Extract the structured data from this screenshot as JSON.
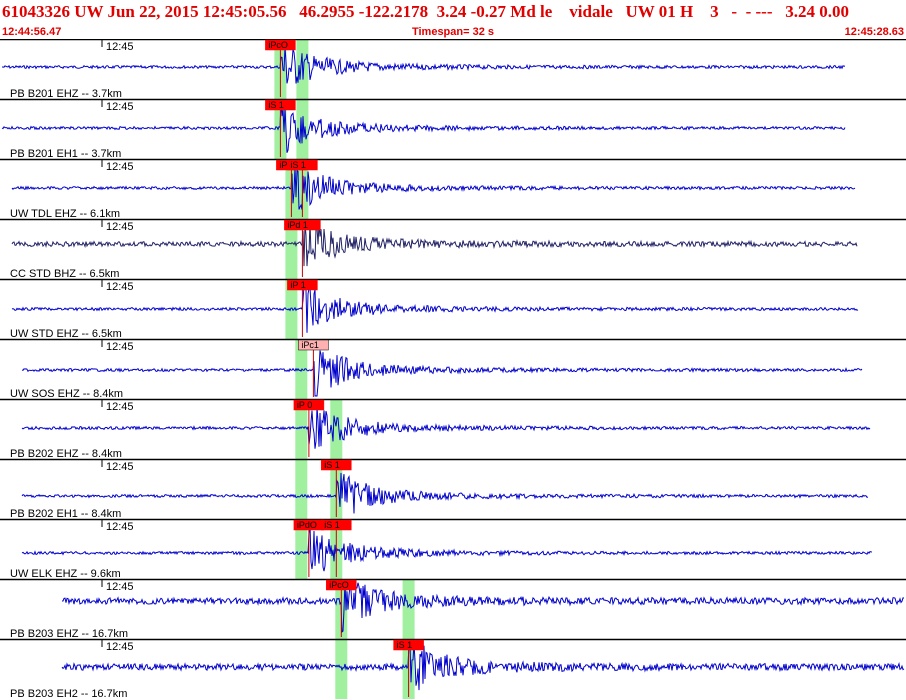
{
  "header": {
    "title": "61043326 UW Jun 22, 2015 12:45:05.56   46.2955 -122.2178  3.24 -0.27 Md le    vidale   UW 01 H    3   -  - ---   3.24 0.00",
    "start_time": "12:44:56.47",
    "timespan": "Timespan=  32 s",
    "end_time": "12:45:28.63"
  },
  "colors": {
    "header_text": "#e00000",
    "trace": "#0000cc",
    "trace_alt": "#222266",
    "pick_box": "#ff0000",
    "pick_box_alt": "#ffb0b0",
    "shade": "#a0f0a0",
    "pick_line": "#cc0000"
  },
  "panels": [
    {
      "time_label": "12:45",
      "station_label": "PB B201 EHZ -- 3.7km",
      "picks": [
        {
          "label": "iPcO",
          "frac": 0.3095
        }
      ],
      "shades": [
        0.3095,
        0.3338
      ]
    },
    {
      "time_label": "12:45",
      "station_label": "PB B201 EH1 -- 3.7km",
      "picks": [
        {
          "label": "iS 1",
          "frac": 0.3095
        }
      ],
      "shades": [
        0.3095,
        0.3338
      ]
    },
    {
      "time_label": "12:45",
      "station_label": "UW TDL EHZ -- 6.1km",
      "picks": [
        {
          "label": "iPdO",
          "frac": 0.3216
        },
        {
          "label": "iS 1",
          "frac": 0.3338
        }
      ],
      "shades": [
        0.3216,
        0.3338
      ]
    },
    {
      "time_label": "12:45",
      "station_label": "CC STD BHZ -- 6.5km",
      "picks": [
        {
          "label": "iPd 1",
          "frac": 0.3338
        }
      ],
      "shades": [
        0.3216
      ]
    },
    {
      "time_label": "12:45",
      "station_label": "UW STD EHZ -- 6.5km",
      "picks": [
        {
          "label": "iP 1",
          "frac": 0.3338
        }
      ],
      "shades": [
        0.3216
      ]
    },
    {
      "time_label": "12:45",
      "station_label": "UW SOS EHZ -- 8.4km",
      "picks": [
        {
          "label": "iPc1",
          "frac": 0.3459,
          "alt": true
        }
      ],
      "shades": [
        0.3326
      ]
    },
    {
      "time_label": "12:45",
      "station_label": "PB B202 EHZ -- 8.4km",
      "picks": [
        {
          "label": "iP 0",
          "frac": 0.341
        }
      ],
      "shades": [
        0.3326,
        0.3712
      ]
    },
    {
      "time_label": "12:45",
      "station_label": "PB B202 EH1 -- 8.4km",
      "picks": [
        {
          "label": "iS 1",
          "frac": 0.3712
        }
      ],
      "shades": [
        0.3326,
        0.3712
      ]
    },
    {
      "time_label": "12:45",
      "station_label": "UW ELK EHZ -- 9.6km",
      "picks": [
        {
          "label": "iPdO",
          "frac": 0.341
        },
        {
          "label": "iS 1",
          "frac": 0.3712
        }
      ],
      "shades": [
        0.3326,
        0.3712
      ]
    },
    {
      "time_label": "12:45",
      "station_label": "PB B203 EHZ -- 16.7km",
      "picks": [
        {
          "label": "iPcO",
          "frac": 0.3767
        }
      ],
      "shades": [
        0.3767,
        0.451
      ]
    },
    {
      "time_label": "12:45",
      "station_label": "PB B203 EH2 -- 16.7km",
      "picks": [
        {
          "label": "iS 1",
          "frac": 0.451
        }
      ],
      "shades": [
        0.3767,
        0.451
      ]
    }
  ]
}
